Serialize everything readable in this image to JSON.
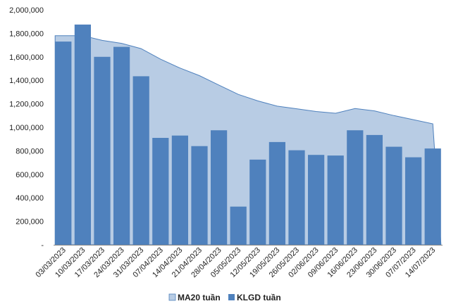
{
  "chart_data": {
    "type": "bar",
    "categories": [
      "03/03/2023",
      "10/03/2023",
      "17/03/2023",
      "24/03/2023",
      "31/03/2023",
      "07/04/2023",
      "14/04/2023",
      "21/04/2023",
      "28/04/2023",
      "05/05/2023",
      "12/05/2023",
      "19/05/2023",
      "26/05/2023",
      "02/06/2023",
      "09/06/2023",
      "16/06/2023",
      "23/06/2023",
      "30/06/2023",
      "07/07/2023",
      "14/07/2023"
    ],
    "series": [
      {
        "name": "MA20 tuần",
        "type": "area",
        "color": "#b8cce4",
        "values": [
          1780000,
          1780000,
          1740000,
          1715000,
          1670000,
          1580000,
          1505000,
          1440000,
          1360000,
          1280000,
          1225000,
          1180000,
          1158000,
          1135000,
          1120000,
          1160000,
          1140000,
          1100000,
          1065000,
          1030000
        ]
      },
      {
        "name": "KLGD tuần",
        "type": "bar",
        "color": "#4f81bd",
        "values": [
          1730000,
          1875000,
          1600000,
          1685000,
          1435000,
          910000,
          930000,
          840000,
          975000,
          325000,
          725000,
          875000,
          805000,
          765000,
          760000,
          975000,
          935000,
          835000,
          745000,
          820000
        ]
      }
    ],
    "y_ticks": [
      "-",
      "200,000",
      "400,000",
      "600,000",
      "800,000",
      "1,000,000",
      "1,200,000",
      "1,400,000",
      "1,600,000",
      "1,800,000",
      "2,000,000"
    ],
    "ylim": [
      0,
      2000000
    ],
    "title": "",
    "xlabel": "",
    "ylabel": "",
    "grid": false,
    "legend": "bottom"
  }
}
